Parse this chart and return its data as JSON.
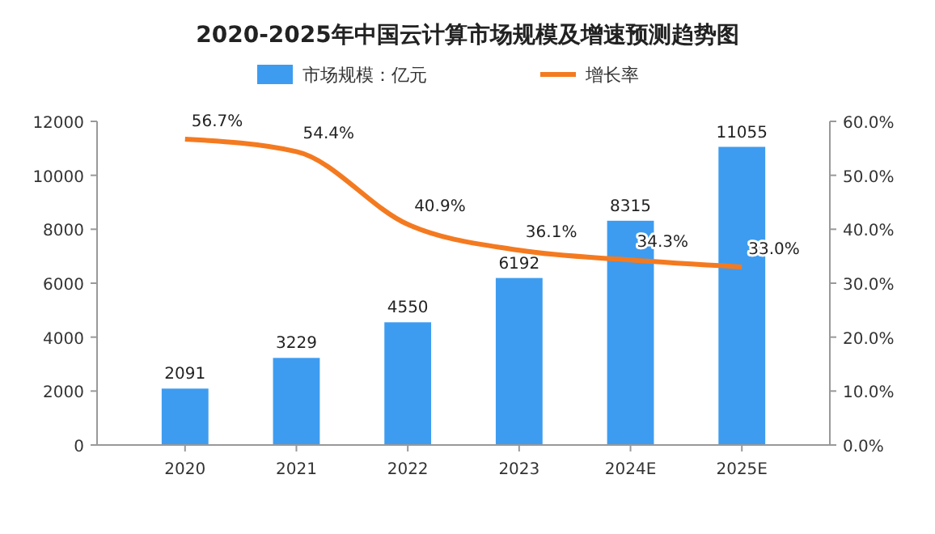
{
  "chart_data": {
    "type": "bar",
    "title": "2020-2025年中国云计算市场规模及增速预测趋势图",
    "categories": [
      "2020",
      "2021",
      "2022",
      "2023",
      "2024E",
      "2025E"
    ],
    "series": [
      {
        "name": "市场规模：亿元",
        "color": "#3d9cf0",
        "values": [
          2091,
          3229,
          4550,
          6192,
          8315,
          11055
        ],
        "value_labels": [
          "2091",
          "3229",
          "4550",
          "6192",
          "8315",
          "11055"
        ]
      },
      {
        "name": "增长率",
        "type": "line",
        "axis": "y2",
        "color": "#f47a20",
        "values": [
          56.7,
          54.4,
          40.9,
          36.1,
          34.3,
          33.0
        ],
        "value_labels": [
          "56.7%",
          "54.4%",
          "40.9%",
          "36.1%",
          "34.3%",
          "33.0%"
        ]
      }
    ],
    "ylim": [
      0,
      12000
    ],
    "yticks": [
      0,
      2000,
      4000,
      6000,
      8000,
      10000,
      12000
    ],
    "y2lim": [
      0,
      60
    ],
    "y2ticks": [
      {
        "value": 0,
        "label": "0.0%"
      },
      {
        "value": 10,
        "label": "10.0%"
      },
      {
        "value": 20,
        "label": "20.0%"
      },
      {
        "value": 30,
        "label": "30.0%"
      },
      {
        "value": 40,
        "label": "40.0%"
      },
      {
        "value": 50,
        "label": "50.0%"
      },
      {
        "value": 60,
        "label": "60.0%"
      }
    ],
    "legend": "top",
    "marker": "none",
    "grid": false
  }
}
